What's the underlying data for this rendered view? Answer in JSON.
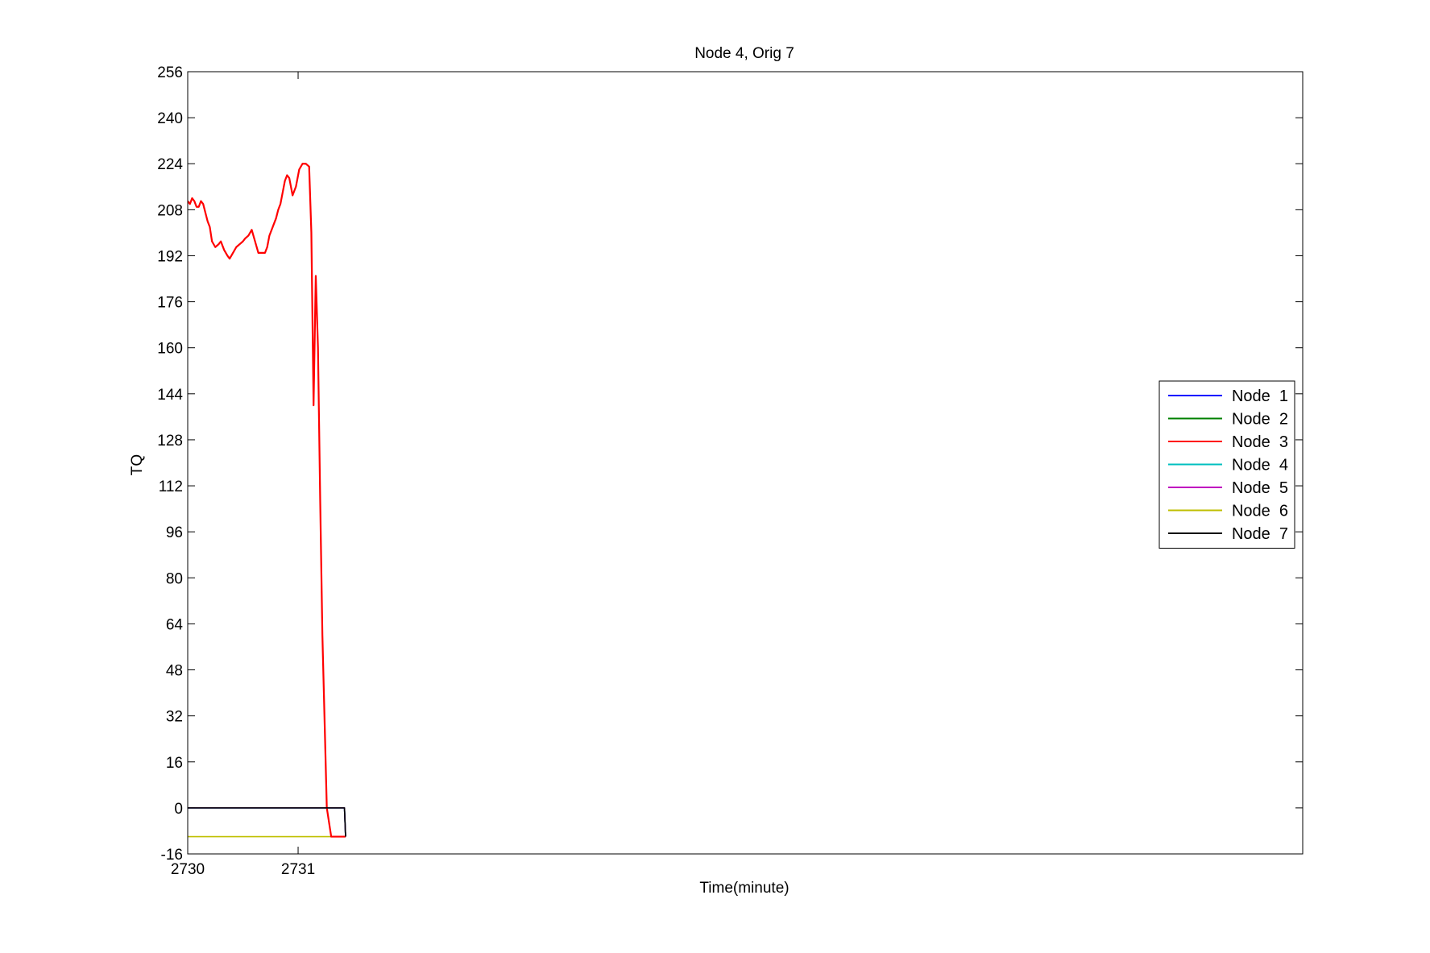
{
  "chart_data": {
    "type": "line",
    "title": "Node 4, Orig 7",
    "xlabel": "Time(minute)",
    "ylabel": "TQ",
    "xlim": [
      2730,
      2740.1
    ],
    "ylim": [
      -16,
      256
    ],
    "xticks": [
      2730,
      2731
    ],
    "yticks": [
      -16,
      0,
      16,
      32,
      48,
      64,
      80,
      96,
      112,
      128,
      144,
      160,
      176,
      192,
      208,
      224,
      240,
      256
    ],
    "grid": false,
    "legend_position": "right",
    "series": [
      {
        "name": "Node  1",
        "color": "#0000ff",
        "x": [
          2730,
          2731.42,
          2731.43
        ],
        "y": [
          0,
          0,
          -10
        ]
      },
      {
        "name": "Node  2",
        "color": "#008000",
        "x": [
          2730,
          2731.42,
          2731.43
        ],
        "y": [
          0,
          0,
          -10
        ]
      },
      {
        "name": "Node  3",
        "color": "#ff0000",
        "x": [
          2730,
          2730.02,
          2730.04,
          2730.06,
          2730.08,
          2730.1,
          2730.12,
          2730.14,
          2730.16,
          2730.18,
          2730.2,
          2730.22,
          2730.25,
          2730.28,
          2730.3,
          2730.33,
          2730.36,
          2730.38,
          2730.41,
          2730.44,
          2730.47,
          2730.5,
          2730.52,
          2730.55,
          2730.58,
          2730.61,
          2730.64,
          2730.67,
          2730.7,
          2730.72,
          2730.74,
          2730.76,
          2730.78,
          2730.8,
          2730.82,
          2730.84,
          2730.86,
          2730.88,
          2730.9,
          2730.92,
          2730.95,
          2730.98,
          2731.01,
          2731.04,
          2731.07,
          2731.1,
          2731.12,
          2731.14,
          2731.16,
          2731.18,
          2731.2,
          2731.22,
          2731.24,
          2731.26,
          2731.28,
          2731.3,
          2731.32,
          2731.34,
          2731.36,
          2731.38,
          2731.395,
          2731.4,
          2731.405,
          2731.41,
          2731.415,
          2731.42,
          2731.425,
          2731.43
        ],
        "y": [
          211,
          210,
          212,
          211,
          209,
          209,
          211,
          210,
          207,
          204,
          202,
          197,
          195,
          196,
          197,
          194,
          192,
          191,
          193,
          195,
          196,
          197,
          198,
          199,
          201,
          197,
          193,
          193,
          193,
          195,
          199,
          201,
          203,
          205,
          208,
          210,
          214,
          218,
          220,
          219,
          213,
          216,
          222,
          224,
          224,
          223,
          200,
          140,
          185,
          160,
          107,
          60,
          30,
          0,
          -5,
          -10,
          -10,
          -10,
          -10,
          -10,
          -10,
          -10,
          -10,
          -10,
          -10,
          -10,
          -10,
          -10
        ]
      },
      {
        "name": "Node  4",
        "color": "#00bfbf",
        "x": [
          2730,
          2731.42,
          2731.43
        ],
        "y": [
          0,
          0,
          -10
        ]
      },
      {
        "name": "Node  5",
        "color": "#bf00bf",
        "x": [
          2730,
          2731.42,
          2731.43
        ],
        "y": [
          0,
          0,
          -10
        ]
      },
      {
        "name": "Node  6",
        "color": "#bfbf00",
        "x": [
          2730,
          2731.43
        ],
        "y": [
          -10,
          -10
        ]
      },
      {
        "name": "Node  7",
        "color": "#000000",
        "x": [
          2730,
          2731.42,
          2731.43
        ],
        "y": [
          0,
          0,
          -10
        ]
      }
    ]
  }
}
